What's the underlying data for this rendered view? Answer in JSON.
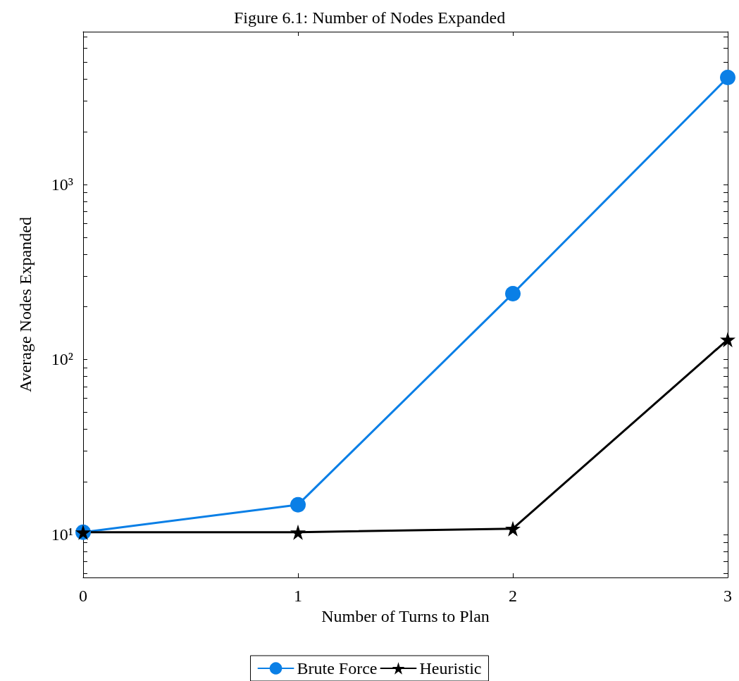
{
  "chart_data": {
    "type": "line",
    "title": "Figure 6.1: Number of Nodes Expanded",
    "xlabel": "Number of Turns to Plan",
    "ylabel": "Average Nodes Expanded",
    "x": [
      0,
      1,
      2,
      3
    ],
    "series": [
      {
        "name": "Brute Force",
        "color": "#0a7fe6",
        "marker": "circle",
        "values": [
          10.3,
          14.8,
          238,
          4090
        ]
      },
      {
        "name": "Heuristic",
        "color": "#000000",
        "marker": "star",
        "values": [
          10.3,
          10.3,
          10.8,
          130
        ]
      }
    ],
    "log": "y",
    "xlim": [
      0,
      3
    ],
    "xticks": [
      0,
      1,
      2,
      3
    ],
    "ylim": [
      5.68,
      7470
    ],
    "yticks": [
      {
        "value": 6,
        "label": null
      },
      {
        "value": 7,
        "label": null
      },
      {
        "value": 8,
        "label": null
      },
      {
        "value": 9,
        "label": null
      },
      {
        "value": 10,
        "label": "10¹"
      },
      {
        "value": 20,
        "label": null
      },
      {
        "value": 30,
        "label": null
      },
      {
        "value": 40,
        "label": null
      },
      {
        "value": 50,
        "label": null
      },
      {
        "value": 60,
        "label": null
      },
      {
        "value": 70,
        "label": null
      },
      {
        "value": 80,
        "label": null
      },
      {
        "value": 90,
        "label": null
      },
      {
        "value": 100,
        "label": "10²"
      },
      {
        "value": 200,
        "label": null
      },
      {
        "value": 300,
        "label": null
      },
      {
        "value": 400,
        "label": null
      },
      {
        "value": 500,
        "label": null
      },
      {
        "value": 600,
        "label": null
      },
      {
        "value": 700,
        "label": null
      },
      {
        "value": 800,
        "label": null
      },
      {
        "value": 900,
        "label": null
      },
      {
        "value": 1000,
        "label": "10³"
      },
      {
        "value": 2000,
        "label": null
      },
      {
        "value": 3000,
        "label": null
      },
      {
        "value": 4000,
        "label": null
      },
      {
        "value": 5000,
        "label": null
      },
      {
        "value": 6000,
        "label": null
      },
      {
        "value": 7000,
        "label": null
      }
    ],
    "grid": false,
    "legend": "bottom",
    "line_style": "solid"
  }
}
